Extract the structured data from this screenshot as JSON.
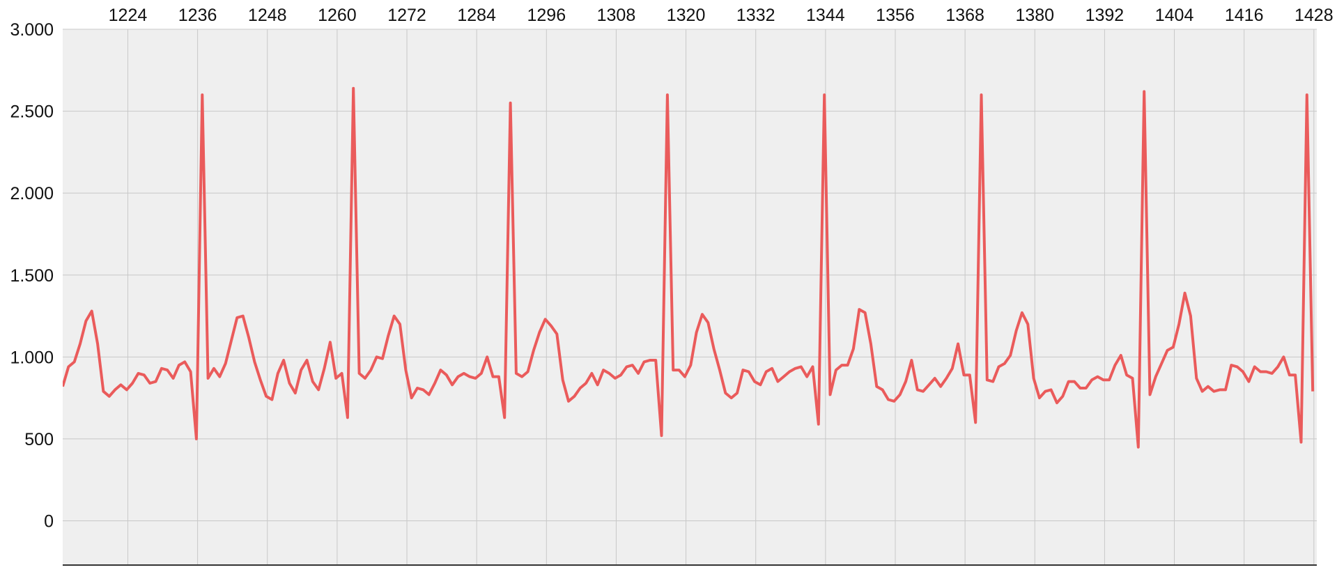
{
  "chart_data": {
    "type": "line",
    "title": "",
    "xlabel": "",
    "ylabel": "",
    "x_axis_position": "top",
    "grid": true,
    "legend": "none",
    "colors": {
      "plot_background": "#efefef",
      "grid": "#c8c8c8",
      "baseline": "#333333",
      "series": "#ea5b5b"
    },
    "xlim": [
      1212.8,
      1428.5
    ],
    "ylim": [
      -270,
      3000
    ],
    "x_ticks": [
      1224,
      1236,
      1248,
      1260,
      1272,
      1284,
      1296,
      1308,
      1320,
      1332,
      1344,
      1356,
      1368,
      1380,
      1392,
      1404,
      1416,
      1428
    ],
    "x_tick_labels": [
      "1224",
      "1236",
      "1248",
      "1260",
      "1272",
      "1284",
      "1296",
      "1308",
      "1320",
      "1332",
      "1344",
      "1356",
      "1368",
      "1380",
      "1392",
      "1404",
      "1416",
      "1428"
    ],
    "y_ticks": [
      0,
      500,
      1000,
      1500,
      2000,
      2500,
      3000
    ],
    "y_tick_labels": [
      "0",
      "500",
      "1.000",
      "1.500",
      "2.000",
      "2.500",
      "3.000"
    ],
    "series": [
      {
        "x_start": 1212.8,
        "x_step": 1,
        "y": [
          820,
          940,
          970,
          1080,
          1220,
          1280,
          1080,
          790,
          760,
          800,
          830,
          800,
          840,
          900,
          890,
          840,
          850,
          930,
          920,
          870,
          950,
          970,
          910,
          500,
          2600,
          870,
          930,
          880,
          960,
          1100,
          1240,
          1250,
          1120,
          970,
          860,
          760,
          740,
          900,
          980,
          840,
          780,
          920,
          980,
          850,
          800,
          930,
          1090,
          870,
          900,
          630,
          2640,
          900,
          870,
          920,
          1000,
          990,
          1130,
          1250,
          1200,
          920,
          750,
          810,
          800,
          770,
          840,
          920,
          890,
          830,
          880,
          900,
          880,
          870,
          900,
          1000,
          880,
          880,
          630,
          2550,
          900,
          880,
          910,
          1040,
          1150,
          1230,
          1190,
          1140,
          860,
          730,
          760,
          810,
          840,
          900,
          830,
          920,
          900,
          870,
          890,
          940,
          950,
          900,
          970,
          980,
          980,
          520,
          2600,
          920,
          920,
          880,
          950,
          1150,
          1260,
          1210,
          1050,
          920,
          780,
          750,
          780,
          920,
          910,
          850,
          830,
          910,
          930,
          850,
          880,
          910,
          930,
          940,
          880,
          940,
          590,
          2600,
          770,
          920,
          950,
          950,
          1050,
          1290,
          1270,
          1080,
          820,
          800,
          740,
          730,
          770,
          850,
          980,
          800,
          790,
          830,
          870,
          820,
          870,
          930,
          1080,
          890,
          890,
          600,
          2600,
          860,
          850,
          940,
          960,
          1010,
          1160,
          1270,
          1200,
          870,
          750,
          790,
          800,
          720,
          760,
          850,
          850,
          810,
          810,
          860,
          880,
          860,
          860,
          950,
          1010,
          890,
          870,
          450,
          2620,
          770,
          880,
          960,
          1040,
          1060,
          1200,
          1390,
          1250,
          870,
          790,
          820,
          790,
          800,
          800,
          950,
          940,
          910,
          850,
          940,
          910,
          910,
          900,
          940,
          1000,
          890,
          890,
          480,
          2600,
          790
        ]
      }
    ]
  }
}
